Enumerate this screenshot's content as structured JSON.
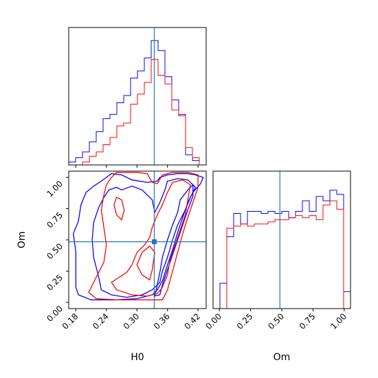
{
  "chart_data": {
    "type": "corner",
    "params": [
      "H0",
      "Om"
    ],
    "xlabels": {
      "h0": "H0",
      "om": "Om"
    },
    "ylabel_om": "Om",
    "truth": {
      "H0": 0.334,
      "Om": 0.485
    },
    "ranges": {
      "H0": [
        0.166,
        0.436
      ],
      "Om": [
        -0.05,
        1.05
      ]
    },
    "ticks": {
      "H0": [
        "0.18",
        "0.24",
        "0.30",
        "0.36",
        "0.42"
      ],
      "Om": [
        "0.00",
        "0.25",
        "0.50",
        "0.75",
        "1.00"
      ]
    },
    "colors": {
      "series_a": "#0000ff",
      "series_b": "#ff0000",
      "truth": "#1f77b4"
    },
    "hist_H0": {
      "bin_edges": [
        0.166,
        0.1795,
        0.193,
        0.2065,
        0.22,
        0.2335,
        0.247,
        0.2605,
        0.274,
        0.2875,
        0.301,
        0.3145,
        0.328,
        0.3415,
        0.355,
        0.3685,
        0.382,
        0.3955,
        0.409,
        0.4225,
        0.436
      ],
      "series": [
        {
          "color": "blue",
          "values": [
            0.02,
            0.05,
            0.09,
            0.16,
            0.23,
            0.32,
            0.35,
            0.43,
            0.48,
            0.6,
            0.65,
            0.74,
            0.86,
            0.79,
            0.61,
            0.45,
            0.35,
            0.07,
            0.03,
            0.0
          ]
        },
        {
          "color": "red",
          "values": [
            0.0,
            0.0,
            0.02,
            0.06,
            0.09,
            0.14,
            0.19,
            0.27,
            0.29,
            0.42,
            0.49,
            0.57,
            0.73,
            0.62,
            0.56,
            0.38,
            0.34,
            0.12,
            0.05,
            0.0
          ]
        }
      ]
    },
    "hist_Om": {
      "bin_edges": [
        -0.05,
        0.005,
        0.06,
        0.115,
        0.17,
        0.225,
        0.28,
        0.335,
        0.39,
        0.445,
        0.5,
        0.555,
        0.61,
        0.665,
        0.72,
        0.775,
        0.83,
        0.885,
        0.94,
        0.995,
        1.05
      ],
      "series": [
        {
          "color": "blue",
          "values": [
            0.0,
            0.12,
            0.34,
            0.45,
            0.4,
            0.46,
            0.46,
            0.45,
            0.46,
            0.45,
            0.46,
            0.43,
            0.46,
            0.51,
            0.46,
            0.53,
            0.51,
            0.56,
            0.54,
            0.08
          ]
        },
        {
          "color": "red",
          "values": [
            0.0,
            0.0,
            0.38,
            0.39,
            0.4,
            0.39,
            0.4,
            0.4,
            0.41,
            0.42,
            0.42,
            0.43,
            0.44,
            0.43,
            0.44,
            0.42,
            0.49,
            0.51,
            0.47,
            0.0
          ]
        }
      ]
    },
    "contours": [
      {
        "color": "blue",
        "points": [
          [
            0.185,
            0.06
          ],
          [
            0.21,
            0.02
          ],
          [
            0.26,
            0.02
          ],
          [
            0.3,
            0.03
          ],
          [
            0.33,
            0.06
          ],
          [
            0.34,
            0.1
          ],
          [
            0.35,
            0.17
          ],
          [
            0.36,
            0.3
          ],
          [
            0.37,
            0.42
          ],
          [
            0.38,
            0.56
          ],
          [
            0.39,
            0.68
          ],
          [
            0.4,
            0.8
          ],
          [
            0.41,
            0.88
          ],
          [
            0.425,
            0.95
          ],
          [
            0.43,
            1.0
          ],
          [
            0.415,
            1.02
          ],
          [
            0.4,
            1.03
          ],
          [
            0.38,
            1.03
          ],
          [
            0.36,
            1.02
          ],
          [
            0.345,
            1.0
          ],
          [
            0.34,
            0.97
          ],
          [
            0.32,
            0.96
          ],
          [
            0.29,
            0.98
          ],
          [
            0.27,
            1.02
          ],
          [
            0.25,
            1.03
          ],
          [
            0.24,
            1.0
          ],
          [
            0.23,
            0.97
          ],
          [
            0.215,
            0.93
          ],
          [
            0.2,
            0.88
          ],
          [
            0.19,
            0.78
          ],
          [
            0.185,
            0.65
          ],
          [
            0.175,
            0.55
          ],
          [
            0.18,
            0.4
          ],
          [
            0.18,
            0.25
          ],
          [
            0.18,
            0.12
          ]
        ]
      },
      {
        "color": "blue",
        "points": [
          [
            0.225,
            0.2
          ],
          [
            0.23,
            0.1
          ],
          [
            0.25,
            0.06
          ],
          [
            0.28,
            0.04
          ],
          [
            0.31,
            0.06
          ],
          [
            0.33,
            0.1
          ],
          [
            0.345,
            0.16
          ],
          [
            0.35,
            0.25
          ],
          [
            0.36,
            0.36
          ],
          [
            0.37,
            0.5
          ],
          [
            0.38,
            0.62
          ],
          [
            0.395,
            0.74
          ],
          [
            0.405,
            0.84
          ],
          [
            0.415,
            0.92
          ],
          [
            0.4,
            0.98
          ],
          [
            0.38,
            0.99
          ],
          [
            0.36,
            0.97
          ],
          [
            0.355,
            0.9
          ],
          [
            0.345,
            0.8
          ],
          [
            0.335,
            0.72
          ],
          [
            0.33,
            0.82
          ],
          [
            0.31,
            0.9
          ],
          [
            0.29,
            0.93
          ],
          [
            0.27,
            0.9
          ],
          [
            0.26,
            0.92
          ],
          [
            0.245,
            0.9
          ],
          [
            0.235,
            0.84
          ],
          [
            0.225,
            0.76
          ],
          [
            0.215,
            0.64
          ],
          [
            0.212,
            0.5
          ],
          [
            0.215,
            0.36
          ],
          [
            0.22,
            0.28
          ]
        ]
      },
      {
        "color": "blue",
        "points": [
          [
            0.335,
            0.05
          ],
          [
            0.34,
            0.14
          ],
          [
            0.345,
            0.24
          ],
          [
            0.35,
            0.36
          ],
          [
            0.36,
            0.5
          ],
          [
            0.37,
            0.62
          ],
          [
            0.38,
            0.72
          ],
          [
            0.385,
            0.82
          ],
          [
            0.4,
            0.9
          ],
          [
            0.41,
            0.94
          ],
          [
            0.41,
            0.85
          ],
          [
            0.4,
            0.74
          ],
          [
            0.39,
            0.62
          ],
          [
            0.38,
            0.5
          ],
          [
            0.37,
            0.38
          ],
          [
            0.36,
            0.26
          ],
          [
            0.35,
            0.14
          ],
          [
            0.345,
            0.06
          ]
        ]
      },
      {
        "color": "red",
        "points": [
          [
            0.205,
            0.08
          ],
          [
            0.22,
            0.03
          ],
          [
            0.26,
            0.02
          ],
          [
            0.3,
            0.02
          ],
          [
            0.35,
            0.02
          ],
          [
            0.36,
            0.1
          ],
          [
            0.37,
            0.25
          ],
          [
            0.38,
            0.4
          ],
          [
            0.39,
            0.55
          ],
          [
            0.4,
            0.68
          ],
          [
            0.41,
            0.8
          ],
          [
            0.42,
            0.92
          ],
          [
            0.42,
            1.02
          ],
          [
            0.4,
            1.04
          ],
          [
            0.37,
            1.04
          ],
          [
            0.35,
            1.02
          ],
          [
            0.34,
            0.95
          ],
          [
            0.33,
            0.96
          ],
          [
            0.32,
            1.03
          ],
          [
            0.3,
            1.04
          ],
          [
            0.28,
            1.04
          ],
          [
            0.26,
            1.04
          ],
          [
            0.25,
            1.0
          ],
          [
            0.24,
            0.94
          ],
          [
            0.235,
            0.86
          ],
          [
            0.23,
            0.74
          ],
          [
            0.235,
            0.6
          ],
          [
            0.24,
            0.46
          ],
          [
            0.235,
            0.32
          ],
          [
            0.22,
            0.2
          ]
        ]
      },
      {
        "color": "red",
        "points": [
          [
            0.25,
            0.16
          ],
          [
            0.26,
            0.1
          ],
          [
            0.29,
            0.06
          ],
          [
            0.32,
            0.05
          ],
          [
            0.34,
            0.07
          ],
          [
            0.35,
            0.12
          ],
          [
            0.36,
            0.22
          ],
          [
            0.365,
            0.34
          ],
          [
            0.375,
            0.46
          ],
          [
            0.385,
            0.58
          ],
          [
            0.395,
            0.7
          ],
          [
            0.4,
            0.82
          ],
          [
            0.405,
            0.94
          ],
          [
            0.39,
            0.98
          ],
          [
            0.37,
            0.96
          ],
          [
            0.36,
            0.88
          ],
          [
            0.35,
            0.78
          ],
          [
            0.34,
            0.7
          ],
          [
            0.33,
            0.6
          ],
          [
            0.325,
            0.52
          ],
          [
            0.315,
            0.46
          ],
          [
            0.3,
            0.4
          ],
          [
            0.29,
            0.3
          ],
          [
            0.28,
            0.24
          ],
          [
            0.265,
            0.2
          ]
        ]
      },
      {
        "color": "red",
        "points": [
          [
            0.3,
            0.3
          ],
          [
            0.31,
            0.22
          ],
          [
            0.325,
            0.18
          ],
          [
            0.33,
            0.26
          ],
          [
            0.335,
            0.4
          ],
          [
            0.325,
            0.45
          ],
          [
            0.31,
            0.4
          ]
        ]
      },
      {
        "color": "red",
        "points": [
          [
            0.255,
            0.78
          ],
          [
            0.26,
            0.7
          ],
          [
            0.27,
            0.66
          ],
          [
            0.275,
            0.74
          ],
          [
            0.27,
            0.82
          ],
          [
            0.26,
            0.84
          ]
        ]
      }
    ]
  }
}
